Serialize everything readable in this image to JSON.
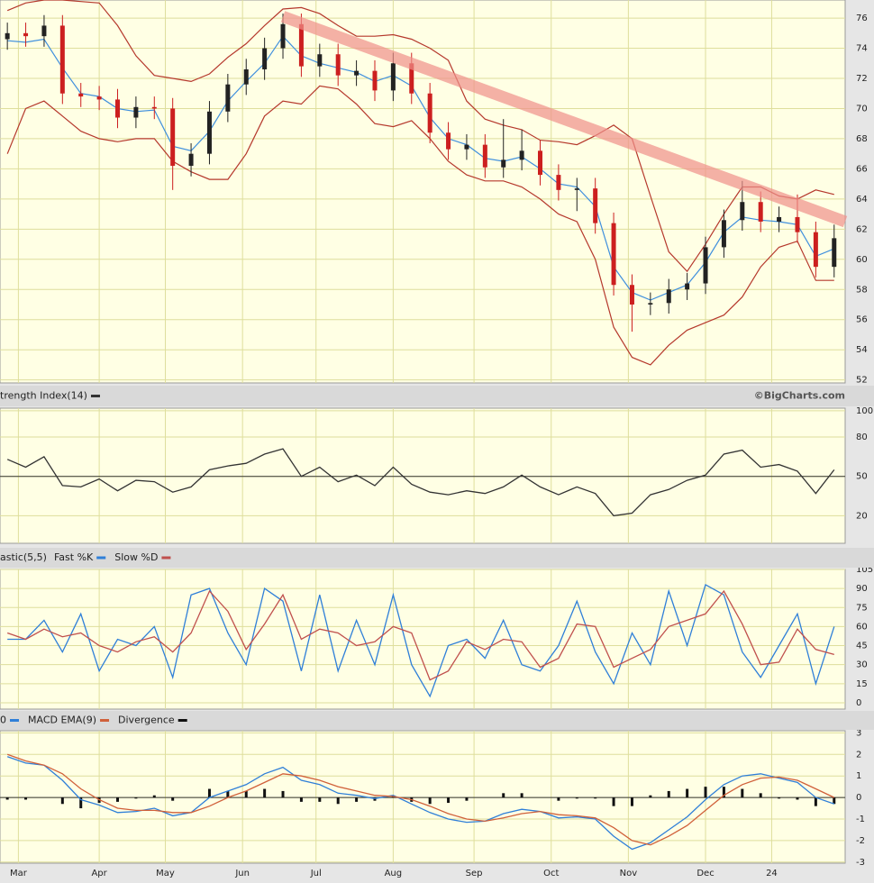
{
  "chart_data": [
    {
      "type": "candlestick",
      "x": [
        2,
        7,
        12,
        17,
        22,
        27,
        32,
        37,
        42,
        47,
        52,
        57,
        62,
        67,
        72,
        77,
        82,
        87,
        92,
        97,
        102,
        107,
        112,
        117,
        122,
        127,
        132,
        137,
        142,
        147,
        152,
        157,
        162,
        167,
        172,
        177,
        182,
        187,
        192,
        197,
        202,
        207,
        212,
        217,
        222,
        227
      ],
      "opens": [
        74.6,
        75.0,
        74.8,
        75.5,
        71.0,
        70.8,
        70.6,
        69.4,
        70.1,
        70.0,
        66.2,
        67.0,
        69.8,
        71.6,
        72.6,
        74.0,
        75.6,
        72.8,
        73.6,
        72.2,
        72.5,
        71.2,
        73.0,
        71.0,
        68.4,
        67.3,
        67.6,
        66.1,
        66.6,
        67.2,
        65.6,
        64.6,
        64.7,
        62.4,
        58.3,
        57.0,
        57.1,
        58.0,
        58.4,
        60.8,
        62.6,
        63.8,
        62.5,
        62.8,
        61.8,
        59.5
      ],
      "highs": [
        75.7,
        75.7,
        76.2,
        76.2,
        71.7,
        71.5,
        71.3,
        70.8,
        70.8,
        70.7,
        67.7,
        70.5,
        72.3,
        73.3,
        74.7,
        76.3,
        76.3,
        74.3,
        74.3,
        73.2,
        73.2,
        73.7,
        73.7,
        71.7,
        69.1,
        68.3,
        68.3,
        69.3,
        68.6,
        67.9,
        66.3,
        65.4,
        65.4,
        63.1,
        59.0,
        57.8,
        58.7,
        59.1,
        61.5,
        63.3,
        65.2,
        64.5,
        63.5,
        64.3,
        62.5,
        62.3
      ],
      "lows": [
        73.9,
        74.1,
        74.1,
        70.3,
        70.1,
        69.9,
        68.7,
        68.7,
        69.3,
        64.6,
        65.5,
        66.3,
        69.1,
        70.9,
        71.9,
        73.3,
        72.1,
        72.1,
        71.5,
        71.5,
        70.5,
        70.5,
        70.3,
        67.7,
        66.6,
        66.6,
        65.4,
        65.4,
        65.9,
        64.9,
        63.9,
        63.2,
        61.7,
        57.6,
        55.2,
        56.3,
        56.4,
        57.3,
        57.7,
        60.1,
        61.9,
        61.8,
        61.8,
        61.1,
        58.8,
        58.8
      ],
      "closes": [
        75.0,
        74.8,
        75.5,
        71.0,
        70.8,
        70.6,
        69.4,
        70.1,
        70.0,
        66.2,
        67.0,
        69.8,
        71.6,
        72.6,
        74.0,
        75.6,
        72.8,
        73.6,
        72.2,
        72.5,
        71.2,
        73.0,
        71.0,
        68.4,
        67.3,
        67.6,
        66.1,
        66.6,
        67.2,
        65.6,
        64.6,
        64.7,
        62.4,
        58.3,
        57.0,
        57.1,
        58.0,
        58.4,
        60.8,
        62.6,
        63.8,
        62.5,
        62.8,
        61.8,
        59.5,
        61.4
      ],
      "up_color": "#222222",
      "down_color": "#cc1f1f",
      "series": [
        {
          "color": "#b5382c",
          "values": [
            76.5,
            77.0,
            77.2,
            77.2,
            77.1,
            77.0,
            75.5,
            73.5,
            72.2,
            72.0,
            71.8,
            72.3,
            73.4,
            74.3,
            75.5,
            76.6,
            76.7,
            76.3,
            75.5,
            74.8,
            74.8,
            74.9,
            74.6,
            74.0,
            73.2,
            70.5,
            69.3,
            68.9,
            68.6,
            67.9,
            67.8,
            67.6,
            68.2,
            68.9,
            68.0,
            64.2,
            60.5,
            59.2,
            61.0,
            63.0,
            64.8,
            64.8,
            64.2,
            64.0,
            64.6,
            64.3
          ]
        },
        {
          "color": "#b5382c",
          "values": [
            67.0,
            70.0,
            70.5,
            69.5,
            68.5,
            68.0,
            67.8,
            68.0,
            68.0,
            66.5,
            65.8,
            65.3,
            65.3,
            67.0,
            69.5,
            70.5,
            70.3,
            71.5,
            71.3,
            70.3,
            69.0,
            68.8,
            69.2,
            68.0,
            66.5,
            65.6,
            65.2,
            65.2,
            64.8,
            64.0,
            63.0,
            62.5,
            60.0,
            55.5,
            53.5,
            53.0,
            54.3,
            55.3,
            55.8,
            56.3,
            57.5,
            59.5,
            60.8,
            61.2,
            58.6,
            58.6
          ]
        },
        {
          "color": "#3f8fdd",
          "values": [
            74.5,
            74.4,
            74.6,
            72.7,
            71.0,
            70.8,
            70.0,
            69.8,
            69.9,
            67.5,
            67.2,
            68.5,
            70.5,
            71.8,
            73.0,
            74.8,
            73.5,
            73.0,
            72.7,
            72.4,
            71.8,
            72.2,
            71.5,
            69.4,
            68.0,
            67.6,
            66.7,
            66.5,
            66.8,
            66.0,
            65.0,
            64.8,
            63.5,
            59.5,
            57.8,
            57.3,
            57.8,
            58.3,
            59.8,
            61.8,
            62.8,
            62.6,
            62.5,
            62.3,
            60.2,
            60.7
          ]
        }
      ],
      "trendline": {
        "x": [
          77,
          230
        ],
        "values": [
          76.1,
          62.5
        ],
        "color": "#f0908a"
      },
      "credit": "©BigCharts.com",
      "ylim": [
        51.8,
        77.2
      ],
      "yticks": [
        52,
        54,
        56,
        58,
        60,
        62,
        64,
        66,
        68,
        70,
        72,
        74,
        76
      ],
      "grid": true
    },
    {
      "type": "line",
      "x": [
        2,
        7,
        12,
        17,
        22,
        27,
        32,
        37,
        42,
        47,
        52,
        57,
        62,
        67,
        72,
        77,
        82,
        87,
        92,
        97,
        102,
        107,
        112,
        117,
        122,
        127,
        132,
        137,
        142,
        147,
        152,
        157,
        162,
        167,
        172,
        177,
        182,
        187,
        192,
        197,
        202,
        207,
        212,
        217,
        222,
        227
      ],
      "series": [
        {
          "name": "trength Index(14)",
          "color": "#333333",
          "values": [
            63,
            57,
            65,
            43,
            42,
            48,
            39,
            47,
            46,
            38,
            42,
            55,
            58,
            60,
            67,
            71,
            50,
            57,
            46,
            51,
            43,
            57,
            44,
            38,
            36,
            39,
            37,
            42,
            51,
            42,
            36,
            42,
            37,
            20,
            22,
            36,
            40,
            47,
            51,
            67,
            70,
            57,
            59,
            54,
            37,
            55
          ]
        }
      ],
      "hline": 50,
      "ylim": [
        -1,
        102
      ],
      "yticks": [
        20,
        50,
        80,
        100
      ],
      "grid": true
    },
    {
      "type": "line",
      "title": "astic(5,5)",
      "x": [
        2,
        7,
        12,
        17,
        22,
        27,
        32,
        37,
        42,
        47,
        52,
        57,
        62,
        67,
        72,
        77,
        82,
        87,
        92,
        97,
        102,
        107,
        112,
        117,
        122,
        127,
        132,
        137,
        142,
        147,
        152,
        157,
        162,
        167,
        172,
        177,
        182,
        187,
        192,
        197,
        202,
        207,
        212,
        217,
        222,
        227
      ],
      "series": [
        {
          "name": "Fast %K",
          "color": "#2f7fd8",
          "values": [
            50,
            50,
            65,
            40,
            70,
            25,
            50,
            45,
            60,
            20,
            85,
            90,
            55,
            30,
            90,
            80,
            25,
            85,
            25,
            65,
            30,
            85,
            30,
            5,
            45,
            50,
            35,
            65,
            30,
            25,
            45,
            80,
            40,
            15,
            55,
            30,
            88,
            45,
            93,
            85,
            40,
            20,
            45,
            70,
            15,
            60
          ]
        },
        {
          "name": "Slow %D",
          "color": "#c0504d",
          "values": [
            55,
            50,
            58,
            52,
            55,
            45,
            40,
            48,
            52,
            40,
            55,
            88,
            72,
            42,
            62,
            85,
            50,
            58,
            55,
            45,
            48,
            60,
            55,
            18,
            25,
            48,
            42,
            50,
            48,
            28,
            35,
            62,
            60,
            28,
            35,
            42,
            60,
            65,
            70,
            88,
            62,
            30,
            32,
            58,
            42,
            38
          ]
        }
      ],
      "ylim": [
        -5,
        105
      ],
      "yticks": [
        0,
        15,
        30,
        45,
        60,
        75,
        90,
        105
      ],
      "grid": true
    },
    {
      "type": "line",
      "x": [
        2,
        7,
        12,
        17,
        22,
        27,
        32,
        37,
        42,
        47,
        52,
        57,
        62,
        67,
        72,
        77,
        82,
        87,
        92,
        97,
        102,
        107,
        112,
        117,
        122,
        127,
        132,
        137,
        142,
        147,
        152,
        157,
        162,
        167,
        172,
        177,
        182,
        187,
        192,
        197,
        202,
        207,
        212,
        217,
        222,
        227
      ],
      "series": [
        {
          "name": "0",
          "color": "#2f7fd8",
          "values": [
            1.9,
            1.6,
            1.5,
            0.8,
            -0.1,
            -0.35,
            -0.7,
            -0.65,
            -0.5,
            -0.85,
            -0.7,
            0.0,
            0.3,
            0.6,
            1.1,
            1.4,
            0.8,
            0.6,
            0.2,
            0.1,
            -0.05,
            0.1,
            -0.3,
            -0.7,
            -1.0,
            -1.15,
            -1.1,
            -0.75,
            -0.55,
            -0.65,
            -0.95,
            -0.9,
            -1.0,
            -1.8,
            -2.4,
            -2.1,
            -1.5,
            -0.9,
            -0.1,
            0.6,
            1.0,
            1.1,
            0.9,
            0.7,
            0.0,
            -0.3
          ]
        },
        {
          "name": "MACD EMA(9)",
          "color": "#d0603a",
          "values": [
            2.0,
            1.7,
            1.5,
            1.1,
            0.4,
            -0.1,
            -0.5,
            -0.6,
            -0.6,
            -0.7,
            -0.7,
            -0.4,
            0.0,
            0.3,
            0.7,
            1.1,
            1.0,
            0.8,
            0.5,
            0.3,
            0.1,
            0.05,
            -0.1,
            -0.4,
            -0.75,
            -1.0,
            -1.1,
            -0.95,
            -0.75,
            -0.65,
            -0.8,
            -0.85,
            -0.95,
            -1.4,
            -2.0,
            -2.2,
            -1.8,
            -1.3,
            -0.6,
            0.1,
            0.6,
            0.9,
            0.95,
            0.8,
            0.4,
            0.0
          ]
        },
        {
          "name": "Divergence",
          "color": "#111111",
          "kind": "bar",
          "values": [
            -0.1,
            -0.1,
            0,
            -0.3,
            -0.5,
            -0.25,
            -0.2,
            -0.05,
            0.1,
            -0.15,
            0,
            0.4,
            0.3,
            0.3,
            0.4,
            0.3,
            -0.2,
            -0.2,
            -0.3,
            -0.2,
            -0.15,
            0.05,
            -0.2,
            -0.3,
            -0.25,
            -0.15,
            0,
            0.2,
            0.2,
            0,
            -0.15,
            -0.05,
            -0.05,
            -0.4,
            -0.4,
            0.1,
            0.3,
            0.4,
            0.5,
            0.5,
            0.4,
            0.2,
            -0.05,
            -0.1,
            -0.4,
            -0.3
          ]
        }
      ],
      "hline": 0,
      "xlim": [
        0,
        230
      ],
      "xticks": [
        {
          "value": 5,
          "label": "Mar"
        },
        {
          "value": 27,
          "label": "Apr"
        },
        {
          "value": 45,
          "label": "May"
        },
        {
          "value": 66,
          "label": "Jun"
        },
        {
          "value": 86,
          "label": "Jul"
        },
        {
          "value": 107,
          "label": "Aug"
        },
        {
          "value": 129,
          "label": "Sep"
        },
        {
          "value": 150,
          "label": "Oct"
        },
        {
          "value": 171,
          "label": "Nov"
        },
        {
          "value": 192,
          "label": "Dec"
        },
        {
          "value": 210,
          "label": "24"
        }
      ],
      "ylim": [
        -3.05,
        3.1
      ],
      "yticks": [
        -3,
        -2,
        -1,
        0,
        1,
        2,
        3
      ],
      "grid": true
    }
  ]
}
